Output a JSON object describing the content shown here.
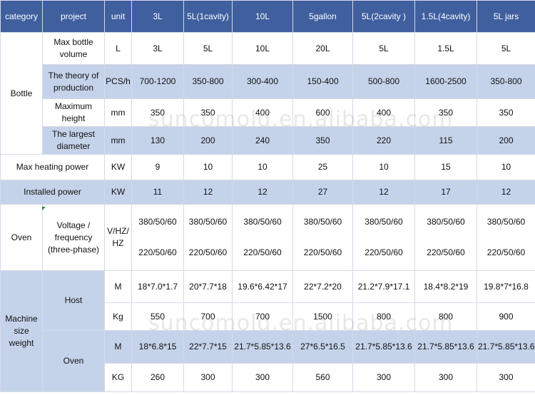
{
  "headers": [
    "category",
    "project",
    "unit",
    "3L",
    "5L(1cavity)",
    "10L",
    "5gallon",
    "5L(2cavity )",
    "1.5L(4cavity)",
    "5L jars"
  ],
  "bottle": {
    "category": "Bottle",
    "rows": [
      {
        "project": "Max bottle volume",
        "unit": "L",
        "values": [
          "3L",
          "5L",
          "10L",
          "20L",
          "5L",
          "1.5L",
          "5L"
        ]
      },
      {
        "project": "The theory of production",
        "unit": "PCS/h",
        "values": [
          "700-1200",
          "350-800",
          "300-400",
          "150-400",
          "500-800",
          "1600-2500",
          "350-800"
        ]
      },
      {
        "project": "Maximum height",
        "unit": "mm",
        "values": [
          "350",
          "350",
          "400",
          "600",
          "400",
          "350",
          "350"
        ]
      },
      {
        "project": "The largest diameter",
        "unit": "mm",
        "values": [
          "130",
          "200",
          "240",
          "350",
          "220",
          "115",
          "200"
        ]
      }
    ]
  },
  "heating": {
    "label": "Max heating power",
    "unit": "KW",
    "values": [
      "9",
      "10",
      "10",
      "25",
      "10",
      "15",
      "10"
    ]
  },
  "installed": {
    "label": "Installed power",
    "unit": "KW",
    "values": [
      "11",
      "12",
      "12",
      "27",
      "12",
      "17",
      "12"
    ]
  },
  "oven": {
    "category": "Oven",
    "project": "Voltage / frequency (three-phase)",
    "unit": "V/HZ/ HZ",
    "values": [
      [
        "380/50/60",
        "220/50/60"
      ],
      [
        "380/50/60",
        "220/50/60"
      ],
      [
        "380/50/60",
        "220/50/60"
      ],
      [
        "380/50/60",
        "220/50/60"
      ],
      [
        "380/50/60",
        "220/50/60"
      ],
      [
        "380/50/60",
        "220/50/60"
      ],
      [
        "380/50/60",
        "220/50/60"
      ]
    ]
  },
  "machine": {
    "category": "Machine size weight",
    "host": {
      "label": "Host",
      "size_unit": "M",
      "size": [
        "18*7.0*1.7",
        "20*7.7*18",
        "19.6*6.42*17",
        "22*7.2*20",
        "21.2*7.9*17.1",
        "18.4*8.2*19",
        "19.8*7*16.8"
      ],
      "weight_unit": "Kg",
      "weight": [
        "550",
        "700",
        "700",
        "1500",
        "800",
        "800",
        "900"
      ]
    },
    "oven": {
      "label": "Oven",
      "size_unit": "M",
      "size": [
        "18*6.8*15",
        "22*7.7*15",
        "21.7*5.85*13.6",
        "27*6.5*16.5",
        "21.7*5.85*13.6",
        "21.7*5.85*13.6",
        "21.7*5.85*13.6"
      ],
      "weight_unit": "KG",
      "weight": [
        "260",
        "300",
        "300",
        "560",
        "300",
        "300",
        "300"
      ]
    }
  },
  "watermark": "suncomold.en.alibaba.com"
}
